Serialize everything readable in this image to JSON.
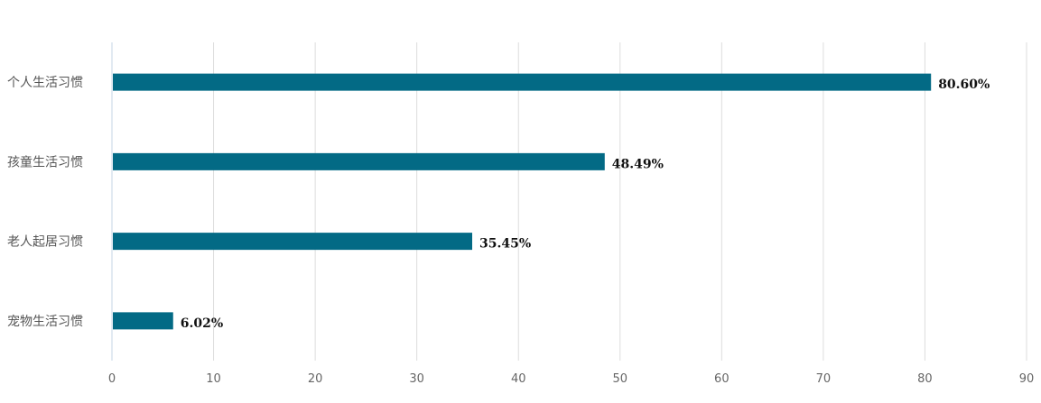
{
  "chart_data": {
    "type": "bar",
    "orientation": "horizontal",
    "categories": [
      "个人生活习惯",
      "孩童生活习惯",
      "老人起居习惯",
      "宠物生活习惯"
    ],
    "values": [
      80.6,
      48.49,
      35.45,
      6.02
    ],
    "value_labels": [
      "80.60%",
      "48.49%",
      "35.45%",
      "6.02%"
    ],
    "title": "",
    "xlabel": "",
    "ylabel": "",
    "xlim": [
      0,
      90
    ],
    "x_ticks": [
      "0",
      "10",
      "20",
      "30",
      "40",
      "50",
      "60",
      "70",
      "80",
      "90"
    ],
    "grid": "vertical",
    "legend": "none",
    "bar_color": "#036a85",
    "grid_color": "#dddddd",
    "axis_color": "#c6d6e6"
  }
}
